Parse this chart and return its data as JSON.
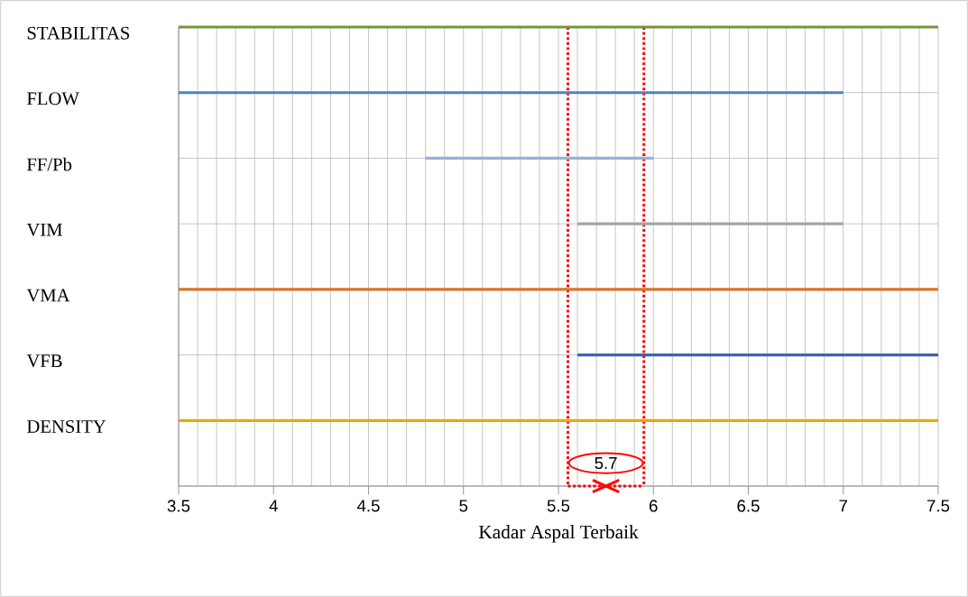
{
  "chart_data": {
    "type": "bar",
    "orientation": "horizontal",
    "xlabel": "Kadar Aspal Terbaik",
    "categories": [
      "STABILITAS",
      "FLOW",
      "FF/Pb",
      "VIM",
      "VMA",
      "VFB",
      "DENSITY"
    ],
    "base": [
      3.5,
      3.5,
      4.8,
      5.6,
      3.5,
      5.6,
      3.5
    ],
    "values": [
      4,
      3.5,
      1.2,
      1.4,
      4,
      1.9,
      4
    ],
    "colors": [
      "#77933c",
      "#4f81bd",
      "#95b3d7",
      "#a5a5a5",
      "#d8742c",
      "#3d64ad",
      "#e3aa10"
    ],
    "xlim": [
      3.5,
      7.5
    ],
    "xticks": [
      3.5,
      {
        "value": 3.6,
        "label": null
      },
      {
        "value": 3.7,
        "label": null
      },
      {
        "value": 3.8,
        "label": null
      },
      {
        "value": 3.9,
        "label": null
      },
      4,
      {
        "value": 4.1,
        "label": null
      },
      {
        "value": 4.2,
        "label": null
      },
      {
        "value": 4.3,
        "label": null
      },
      {
        "value": 4.4,
        "label": null
      },
      4.5,
      {
        "value": 4.6,
        "label": null
      },
      {
        "value": 4.7,
        "label": null
      },
      {
        "value": 4.8,
        "label": null
      },
      {
        "value": 4.9,
        "label": null
      },
      5,
      {
        "value": 5.1,
        "label": null
      },
      {
        "value": 5.2,
        "label": null
      },
      {
        "value": 5.3,
        "label": null
      },
      {
        "value": 5.4,
        "label": null
      },
      5.5,
      {
        "value": 5.6,
        "label": null
      },
      {
        "value": 5.7,
        "label": null
      },
      {
        "value": 5.8,
        "label": null
      },
      {
        "value": 5.9,
        "label": null
      },
      6,
      {
        "value": 6.1,
        "label": null
      },
      {
        "value": 6.2,
        "label": null
      },
      {
        "value": 6.3,
        "label": null
      },
      {
        "value": 6.4,
        "label": null
      },
      6.5,
      {
        "value": 6.6,
        "label": null
      },
      {
        "value": 6.7,
        "label": null
      },
      {
        "value": 6.8,
        "label": null
      },
      {
        "value": 6.9,
        "label": null
      },
      7,
      {
        "value": 7.1,
        "label": null
      },
      {
        "value": 7.2,
        "label": null
      },
      {
        "value": 7.3,
        "label": null
      },
      {
        "value": 7.4,
        "label": null
      },
      7.5
    ],
    "grid": true,
    "ref_lines": [
      {
        "axis": "x",
        "value": 5.55,
        "color": "#ff0000",
        "line_style": "dotted"
      },
      {
        "axis": "x",
        "value": 5.95,
        "color": "#ff0000",
        "line_style": "dotted"
      }
    ],
    "annotations": [
      "5.7"
    ]
  }
}
